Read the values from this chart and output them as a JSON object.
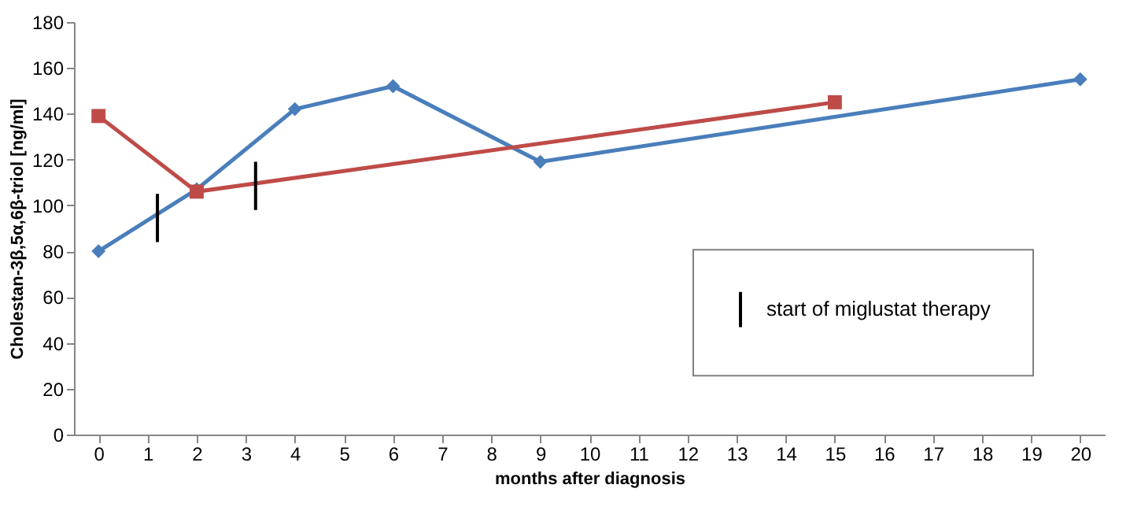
{
  "chart_data": {
    "type": "line",
    "xlabel": "months after diagnosis",
    "ylabel": "Cholestan-3β,5α,6β-triol [ng/ml]",
    "xlim": [
      -0.5,
      20.5
    ],
    "xticks": [
      0,
      1,
      2,
      3,
      4,
      5,
      6,
      7,
      8,
      9,
      10,
      11,
      12,
      13,
      14,
      15,
      16,
      17,
      18,
      19,
      20
    ],
    "ylim": [
      0,
      180
    ],
    "yticks": [
      0,
      20,
      40,
      60,
      80,
      100,
      120,
      140,
      160,
      180
    ],
    "legend": "bottom right",
    "series": [
      {
        "color": "#4a7ebb",
        "marker": "diamond",
        "x": [
          0,
          2,
          4,
          6,
          9,
          20
        ],
        "values": [
          80,
          107,
          142,
          152,
          119,
          155
        ]
      },
      {
        "color": "#be4b48",
        "marker": "square",
        "x": [
          0,
          2,
          15
        ],
        "values": [
          139,
          106,
          145
        ]
      },
      {
        "name": "start of miglustat therapy",
        "color": "#000000",
        "marker": "none",
        "x": [
          1.2,
          1.2,
          2.2,
          3.2,
          3.2
        ],
        "values": [
          84,
          105,
          null,
          98,
          119
        ]
      }
    ]
  }
}
